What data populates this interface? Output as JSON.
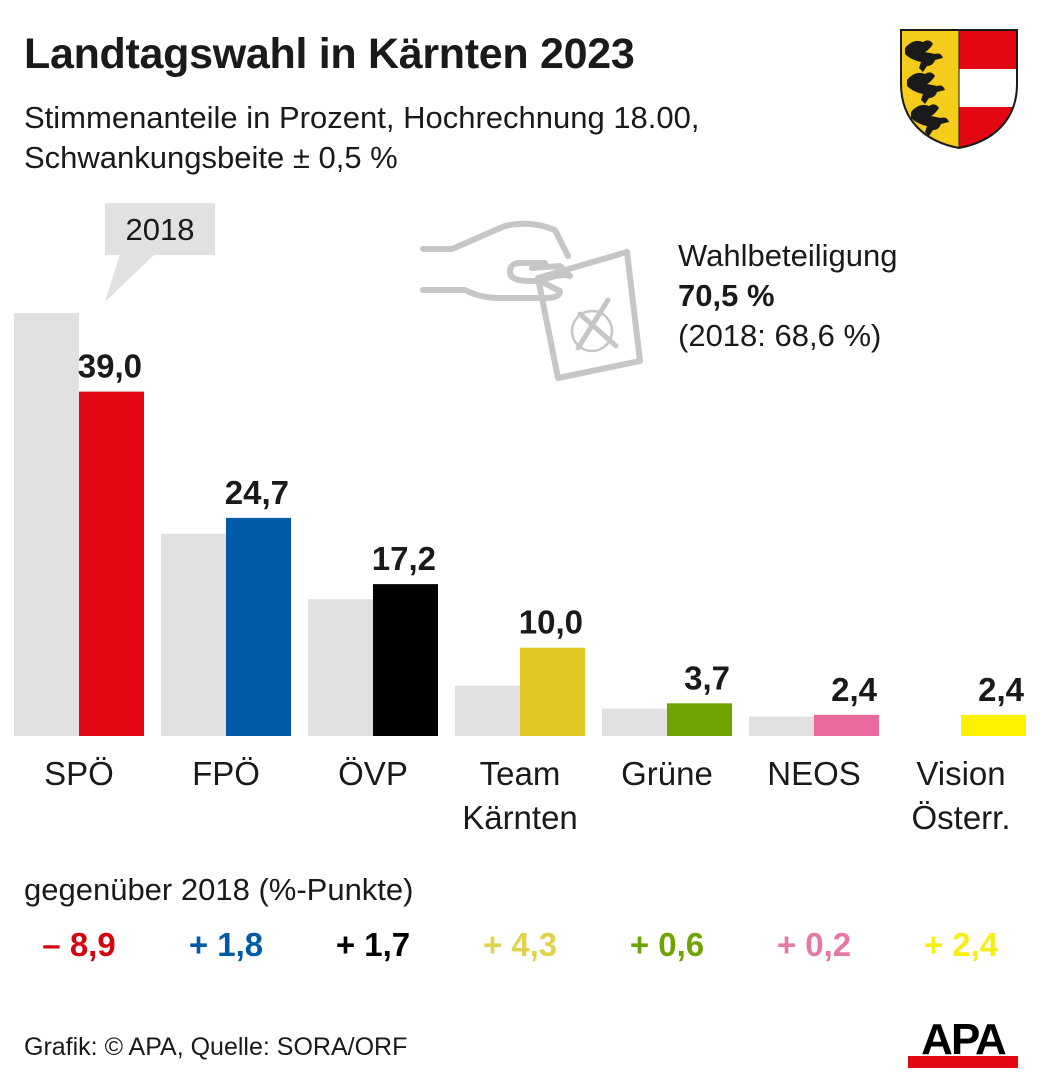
{
  "header": {
    "title": "Landtagswahl in Kärnten 2023",
    "subtitle_line1": "Stimmenanteile in Prozent, Hochrechnung 18.00,",
    "subtitle_line2": "Schwankungsbeite ± 0,5 %"
  },
  "coat_of_arms": {
    "icon": "carinthia-coat-of-arms-icon",
    "colors": {
      "yellow": "#f5cc1b",
      "red": "#e30613",
      "white": "#ffffff",
      "black": "#1a1a1a"
    }
  },
  "callout": {
    "label": "2018"
  },
  "turnout": {
    "icon": "ballot-hand-icon",
    "label": "Wahlbeteiligung",
    "value": "70,5 %",
    "previous": "(2018: 68,6 %)"
  },
  "chart_data": {
    "type": "bar",
    "title": "Landtagswahl in Kärnten 2023",
    "subtitle": "Stimmenanteile in Prozent, Hochrechnung 18.00, Schwankungsbeite ± 0,5 %",
    "xlabel": "",
    "ylabel": "",
    "ylim": [
      0,
      50
    ],
    "grid": false,
    "categories": [
      "SPÖ",
      "FPÖ",
      "ÖVP",
      "Team Kärnten",
      "Grüne",
      "NEOS",
      "Vision Österr."
    ],
    "category_lines": [
      [
        "SPÖ"
      ],
      [
        "FPÖ"
      ],
      [
        "ÖVP"
      ],
      [
        "Team",
        "Kärnten"
      ],
      [
        "Grüne"
      ],
      [
        "NEOS"
      ],
      [
        "Vision",
        "Österr."
      ]
    ],
    "series": [
      {
        "name": "2018",
        "color": "#e1e1e1",
        "values": [
          47.9,
          22.9,
          15.5,
          5.7,
          3.1,
          2.2,
          0
        ]
      },
      {
        "name": "2023",
        "values": [
          39.0,
          24.7,
          17.2,
          10.0,
          3.7,
          2.4,
          2.4
        ],
        "labels": [
          "39,0",
          "24,7",
          "17,2",
          "10,0",
          "3,7",
          "2,4",
          "2,4"
        ],
        "colors": [
          "#e30613",
          "#005aa7",
          "#000000",
          "#e0c923",
          "#6fa300",
          "#e9699f",
          "#fff200"
        ]
      }
    ],
    "diff_title": "gegenüber 2018 (%-Punkte)",
    "diffs": [
      "– 8,9",
      "+ 1,8",
      "+ 1,7",
      "+ 4,3",
      "+ 0,6",
      "+ 0,2",
      "+ 2,4"
    ],
    "diff_colors": [
      "#d40511",
      "#005aa7",
      "#000000",
      "#e0d24a",
      "#6fa300",
      "#e677a6",
      "#f6ee14"
    ]
  },
  "footer": {
    "credit": "Grafik: © APA, Quelle: SORA/ORF",
    "logo_text": "APA",
    "logo_colors": {
      "text": "#000000",
      "bar": "#e30613"
    }
  }
}
